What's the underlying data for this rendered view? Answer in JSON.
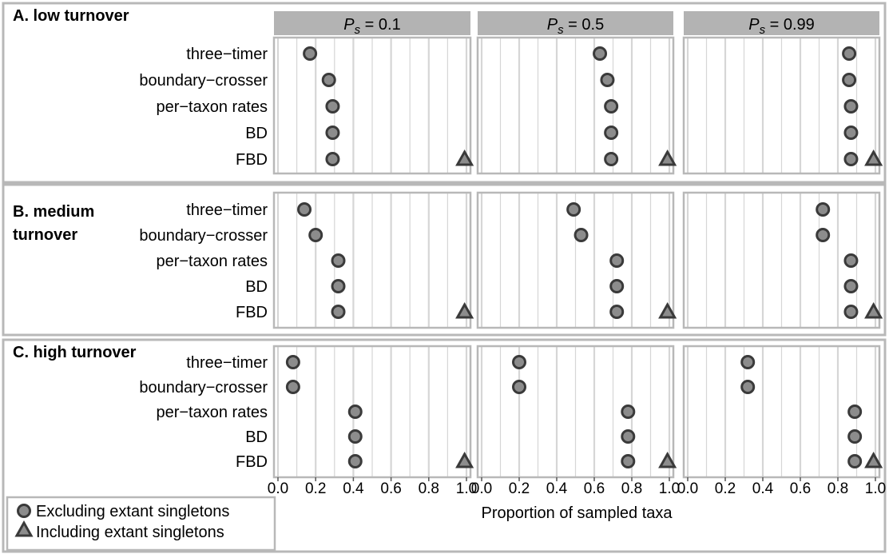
{
  "chart_data": {
    "type": "scatter",
    "xlabel": "Proportion of sampled taxa",
    "xlim": [
      0,
      1
    ],
    "xticks": [
      "0.0",
      "0.2",
      "0.4",
      "0.6",
      "0.8",
      "1.0"
    ],
    "grid": true,
    "facet_columns": [
      {
        "prefix": "P",
        "subscript": "s",
        "suffix": " = 0.1"
      },
      {
        "prefix": "P",
        "subscript": "s",
        "suffix": " = 0.5"
      },
      {
        "prefix": "P",
        "subscript": "s",
        "suffix": " = 0.99"
      }
    ],
    "methods": [
      "three−timer",
      "boundary−crosser",
      "per−taxon rates",
      "BD",
      "FBD"
    ],
    "panels": [
      {
        "title_lines": [
          "A. low turnover"
        ],
        "excluding": [
          [
            0.17,
            0.27,
            0.29,
            0.29,
            0.29
          ],
          [
            0.63,
            0.67,
            0.69,
            0.69,
            0.69
          ],
          [
            0.86,
            0.86,
            0.87,
            0.87,
            0.87
          ]
        ],
        "including_fbd": [
          0.99,
          0.99,
          0.99
        ]
      },
      {
        "title_lines": [
          "B. medium",
          "turnover"
        ],
        "excluding": [
          [
            0.14,
            0.2,
            0.32,
            0.32,
            0.32
          ],
          [
            0.49,
            0.53,
            0.72,
            0.72,
            0.72
          ],
          [
            0.72,
            0.72,
            0.87,
            0.87,
            0.87
          ]
        ],
        "including_fbd": [
          0.99,
          0.99,
          0.99
        ]
      },
      {
        "title_lines": [
          "C. high turnover"
        ],
        "excluding": [
          [
            0.08,
            0.08,
            0.41,
            0.41,
            0.41
          ],
          [
            0.2,
            0.2,
            0.78,
            0.78,
            0.78
          ],
          [
            0.32,
            0.32,
            0.89,
            0.89,
            0.89
          ]
        ],
        "including_fbd": [
          0.99,
          0.99,
          0.99
        ]
      }
    ],
    "legend": {
      "placement": "bottom-left",
      "entries": [
        {
          "symbol": "circle",
          "label": "Excluding extant singletons"
        },
        {
          "symbol": "triangle",
          "label": "Including extant singletons"
        }
      ]
    },
    "colors": {
      "point_fill": "#8c8c8c",
      "point_stroke": "#3a3a3a",
      "strip_fill": "#b3b3b3",
      "grid": "#d6d6d6",
      "panel_border": "#b8b8b8"
    }
  }
}
